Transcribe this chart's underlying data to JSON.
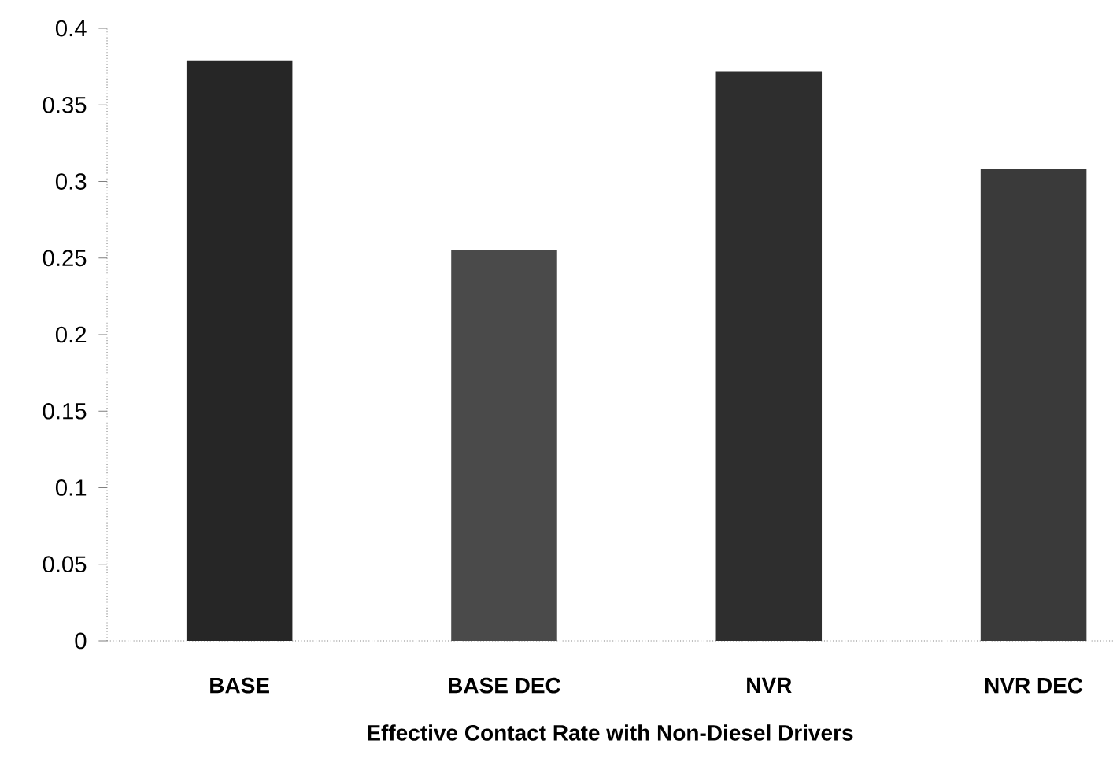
{
  "chart_data": {
    "type": "bar",
    "xlabel": "Effective Contact Rate with Non-Diesel Drivers",
    "categories": [
      "BASE",
      "BASE DEC",
      "NVR",
      "NVR DEC"
    ],
    "values": [
      0.379,
      0.255,
      0.372,
      0.308
    ],
    "colors": [
      "#262626",
      "#4a4a4a",
      "#2e2e2e",
      "#3a3a3a"
    ],
    "ylim": [
      0,
      0.4
    ],
    "yticks": [
      0,
      0.05,
      0.1,
      0.15,
      0.2,
      0.25,
      0.3,
      0.35,
      0.4
    ]
  }
}
